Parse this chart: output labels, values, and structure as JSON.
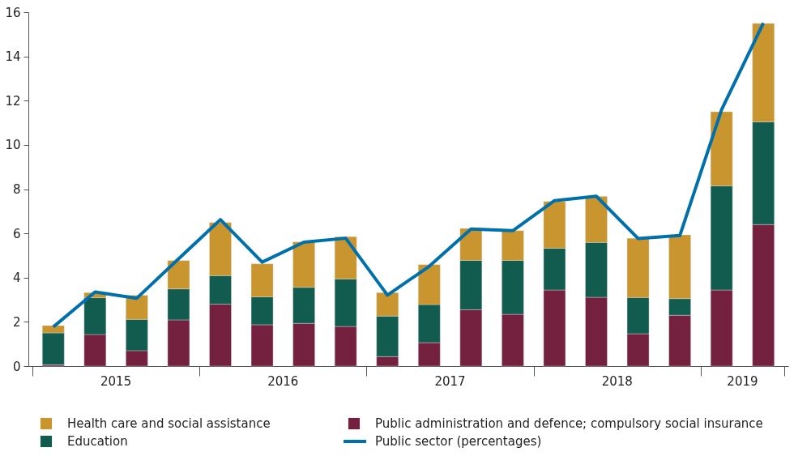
{
  "chart_data": {
    "type": "bar",
    "stacked": true,
    "categories": [
      null,
      null,
      null,
      null,
      null,
      null,
      null,
      null,
      null,
      null,
      null,
      null,
      null,
      null,
      null,
      null,
      null,
      null
    ],
    "series": [
      {
        "name": "Public administration and defence; compulsory social insurance",
        "color": "#74213f",
        "values": [
          0.06,
          1.43,
          0.7,
          2.09,
          2.8,
          1.87,
          1.93,
          1.79,
          0.43,
          1.06,
          2.55,
          2.34,
          3.44,
          3.11,
          1.46,
          2.3,
          3.44,
          6.4
        ]
      },
      {
        "name": "Education",
        "color": "#115b4f",
        "values": [
          1.44,
          1.66,
          1.41,
          1.4,
          1.29,
          1.26,
          1.63,
          2.15,
          1.83,
          1.72,
          2.23,
          2.44,
          1.89,
          2.48,
          1.64,
          0.75,
          4.71,
          4.64
        ]
      },
      {
        "name": "Health care and social assistance",
        "color": "#c9952e",
        "values": [
          0.33,
          0.23,
          1.09,
          1.28,
          2.4,
          1.49,
          2.05,
          1.91,
          1.06,
          1.81,
          1.44,
          1.34,
          2.11,
          2.08,
          2.68,
          2.88,
          3.35,
          4.45
        ]
      },
      {
        "name": "Public sector (percentages)",
        "color": "#0070ad",
        "type": "line",
        "values": [
          1.77,
          3.35,
          3.07,
          4.85,
          6.62,
          4.7,
          5.6,
          5.78,
          3.21,
          4.51,
          6.2,
          6.12,
          7.48,
          7.68,
          5.77,
          5.9,
          11.59,
          15.51
        ]
      }
    ],
    "ylim": [
      0,
      16
    ],
    "yticks": [
      0,
      2,
      4,
      6,
      8,
      10,
      12,
      14,
      16
    ],
    "grid": false,
    "legend": "bottom",
    "annotations": [
      "2015",
      "2016",
      "2017",
      "2018",
      "2019"
    ]
  }
}
